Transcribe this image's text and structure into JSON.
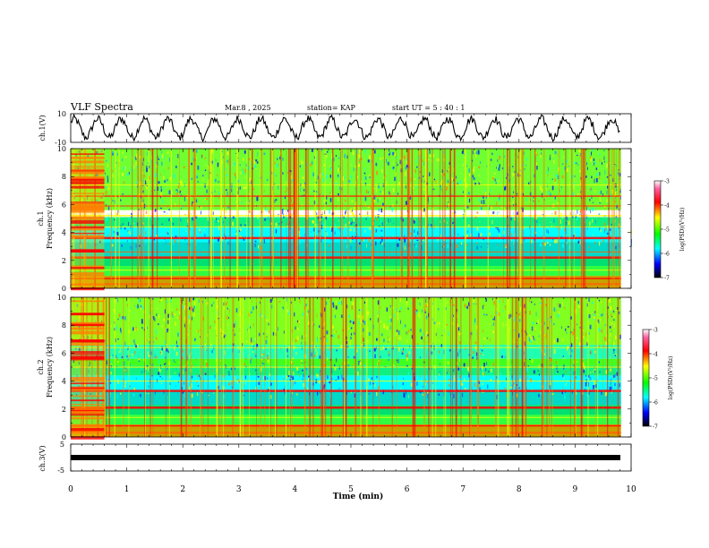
{
  "header": {
    "title": "VLF Spectra",
    "date": "Mar.8 , 2025",
    "station": "station= KAP",
    "start": "start UT = 5 : 40 : 1"
  },
  "colorbar": {
    "label": "log(PSD)(V²/Hz)",
    "ticks": [
      "-3",
      "-4",
      "-5",
      "-6",
      "-7"
    ],
    "colors": [
      "#ff00ff",
      "#ff0000",
      "#ffff00",
      "#00ff00",
      "#00ffff",
      "#0000ff",
      "#000000"
    ]
  },
  "chart_data": [
    {
      "type": "line",
      "name": "ch1-waveform",
      "ylabel": "ch.1(V)",
      "ylim": [
        -10,
        10
      ],
      "yticks": [
        "10",
        "-10"
      ],
      "xlim": [
        0,
        10
      ],
      "note_cycles": 24,
      "x_end_min": 9.8
    },
    {
      "type": "heatmap",
      "name": "ch1-spectrogram",
      "ylabel_line1": "ch.1",
      "ylabel_line2": "Frequency (kHz)",
      "ylim": [
        0,
        10
      ],
      "yticks": [
        "0",
        "2",
        "4",
        "6",
        "8",
        "10"
      ],
      "xlim": [
        0,
        10
      ],
      "zlim": [
        -7,
        -3
      ]
    },
    {
      "type": "heatmap",
      "name": "ch2-spectrogram",
      "ylabel_line1": "ch.2",
      "ylabel_line2": "Frequency (kHz)",
      "ylim": [
        0,
        10
      ],
      "yticks": [
        "0",
        "2",
        "4",
        "6",
        "8",
        "10"
      ],
      "xlim": [
        0,
        10
      ],
      "zlim": [
        -7,
        -3
      ]
    },
    {
      "type": "line",
      "name": "ch3-waveform",
      "ylabel": "ch.3(V)",
      "ylim": [
        -5,
        5
      ],
      "yticks": [
        "5",
        "-5"
      ],
      "xlim": [
        0,
        10
      ],
      "value": -0.7
    }
  ],
  "xaxis": {
    "label": "Time (min)",
    "ticks": [
      "0",
      "1",
      "2",
      "3",
      "4",
      "5",
      "6",
      "7",
      "8",
      "9",
      "10"
    ]
  }
}
